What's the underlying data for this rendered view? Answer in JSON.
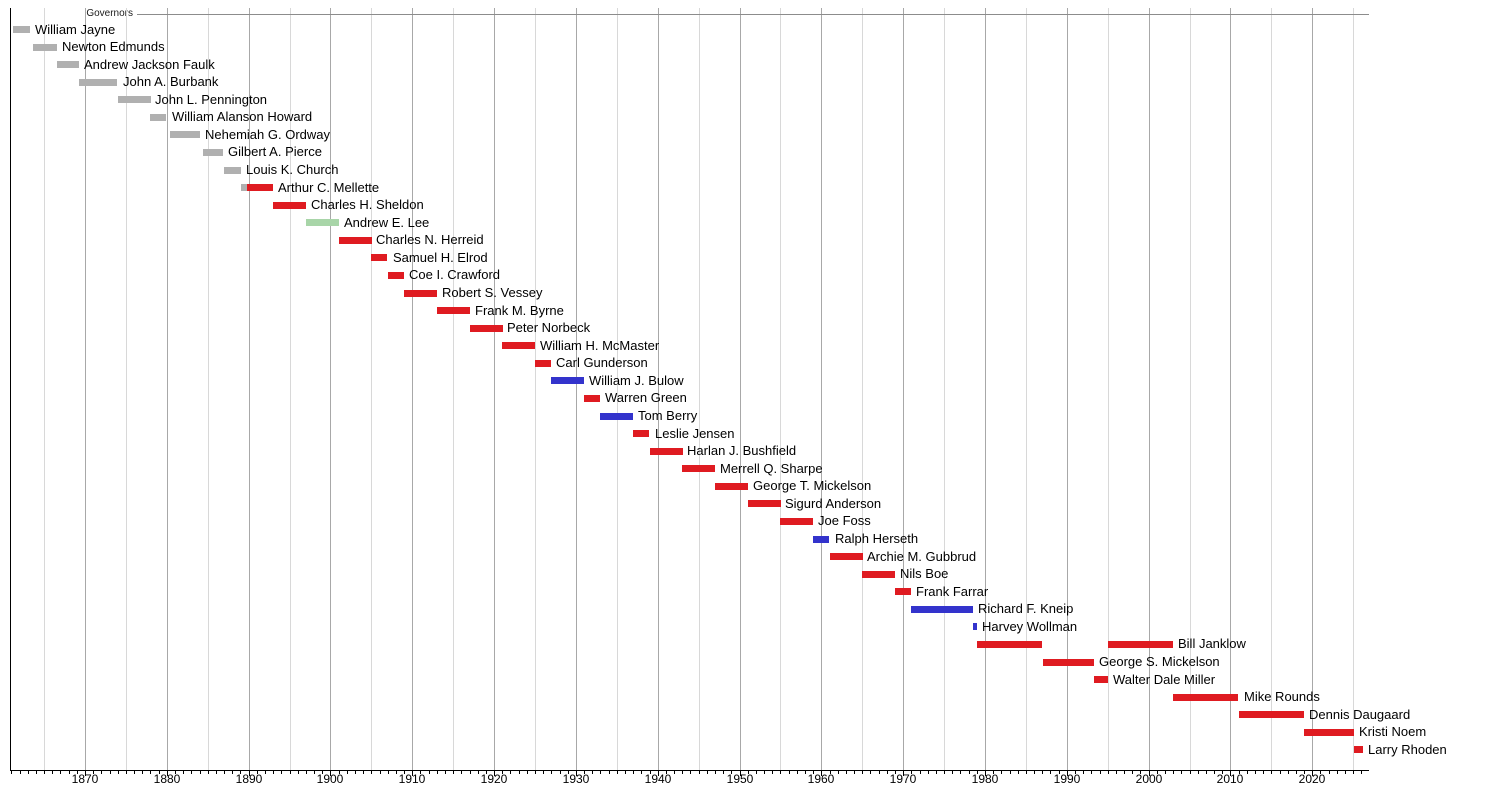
{
  "chart_data": {
    "type": "timeline",
    "title": "Governors",
    "subtitle": "",
    "legend": "none",
    "orientation": "horizontal bars, one row per governor, label right of bar",
    "x_axis": {
      "min_year": 1861,
      "max_year": 2027,
      "gridline_every_years": 5,
      "tick_every_years": 1,
      "label_every_years": 10,
      "decade_labels": [
        "1870",
        "1880",
        "1890",
        "1900",
        "1910",
        "1920",
        "1930",
        "1940",
        "1950",
        "1960",
        "1970",
        "1980",
        "1990",
        "2000",
        "2010",
        "2020"
      ]
    },
    "party_colors": {
      "Territorial": "#b0b0b0",
      "Republican": "#df1b21",
      "Democratic": "#3333cc",
      "Populist": "#a8d5a8"
    },
    "grid_colors": {
      "minor": "#d8d8d8",
      "major": "#a8a8a8",
      "axis": "#000000",
      "top_line": "#8c8c8c"
    },
    "governors": [
      {
        "name": "William Jayne",
        "party": "Territorial",
        "terms": [
          {
            "start": 1861.2,
            "end": 1863.3,
            "party": "Territorial"
          }
        ]
      },
      {
        "name": "Newton Edmunds",
        "party": "Territorial",
        "terms": [
          {
            "start": 1863.7,
            "end": 1866.6,
            "party": "Territorial"
          }
        ]
      },
      {
        "name": "Andrew Jackson Faulk",
        "party": "Territorial",
        "terms": [
          {
            "start": 1866.6,
            "end": 1869.3,
            "party": "Territorial"
          }
        ]
      },
      {
        "name": "John A. Burbank",
        "party": "Territorial",
        "terms": [
          {
            "start": 1869.3,
            "end": 1874.0,
            "party": "Territorial"
          }
        ]
      },
      {
        "name": "John L. Pennington",
        "party": "Territorial",
        "terms": [
          {
            "start": 1874.0,
            "end": 1878.0,
            "party": "Territorial"
          }
        ]
      },
      {
        "name": "William Alanson Howard",
        "party": "Territorial",
        "terms": [
          {
            "start": 1878.0,
            "end": 1880.0,
            "party": "Territorial"
          }
        ]
      },
      {
        "name": "Nehemiah G. Ordway",
        "party": "Territorial",
        "terms": [
          {
            "start": 1880.4,
            "end": 1884.1,
            "party": "Territorial"
          }
        ]
      },
      {
        "name": "Gilbert A. Pierce",
        "party": "Territorial",
        "terms": [
          {
            "start": 1884.4,
            "end": 1886.9,
            "party": "Territorial"
          }
        ]
      },
      {
        "name": "Louis K. Church",
        "party": "Territorial",
        "terms": [
          {
            "start": 1887.0,
            "end": 1889.05,
            "party": "Territorial"
          }
        ]
      },
      {
        "name": "Arthur C. Mellette",
        "party": "Republican",
        "terms": [
          {
            "start": 1889.05,
            "end": 1889.85,
            "party": "Territorial"
          },
          {
            "start": 1889.85,
            "end": 1893.0,
            "party": "Republican"
          }
        ]
      },
      {
        "name": "Charles H. Sheldon",
        "party": "Republican",
        "terms": [
          {
            "start": 1893.0,
            "end": 1897.0,
            "party": "Republican"
          }
        ]
      },
      {
        "name": "Andrew E. Lee",
        "party": "Populist",
        "terms": [
          {
            "start": 1897.0,
            "end": 1901.0,
            "party": "Populist"
          }
        ]
      },
      {
        "name": "Charles N. Herreid",
        "party": "Republican",
        "terms": [
          {
            "start": 1901.0,
            "end": 1905.0,
            "party": "Republican"
          }
        ]
      },
      {
        "name": "Samuel H. Elrod",
        "party": "Republican",
        "terms": [
          {
            "start": 1905.0,
            "end": 1907.0,
            "party": "Republican"
          }
        ]
      },
      {
        "name": "Coe I. Crawford",
        "party": "Republican",
        "terms": [
          {
            "start": 1907.0,
            "end": 1909.0,
            "party": "Republican"
          }
        ]
      },
      {
        "name": "Robert S. Vessey",
        "party": "Republican",
        "terms": [
          {
            "start": 1909.0,
            "end": 1913.0,
            "party": "Republican"
          }
        ]
      },
      {
        "name": "Frank M. Byrne",
        "party": "Republican",
        "terms": [
          {
            "start": 1913.0,
            "end": 1917.0,
            "party": "Republican"
          }
        ]
      },
      {
        "name": "Peter Norbeck",
        "party": "Republican",
        "terms": [
          {
            "start": 1917.0,
            "end": 1921.0,
            "party": "Republican"
          }
        ]
      },
      {
        "name": "William H. McMaster",
        "party": "Republican",
        "terms": [
          {
            "start": 1921.0,
            "end": 1925.0,
            "party": "Republican"
          }
        ]
      },
      {
        "name": "Carl Gunderson",
        "party": "Republican",
        "terms": [
          {
            "start": 1925.0,
            "end": 1927.0,
            "party": "Republican"
          }
        ]
      },
      {
        "name": "William J. Bulow",
        "party": "Democratic",
        "terms": [
          {
            "start": 1927.0,
            "end": 1931.0,
            "party": "Democratic"
          }
        ]
      },
      {
        "name": "Warren Green",
        "party": "Republican",
        "terms": [
          {
            "start": 1931.0,
            "end": 1933.0,
            "party": "Republican"
          }
        ]
      },
      {
        "name": "Tom Berry",
        "party": "Democratic",
        "terms": [
          {
            "start": 1933.0,
            "end": 1937.0,
            "party": "Democratic"
          }
        ]
      },
      {
        "name": "Leslie Jensen",
        "party": "Republican",
        "terms": [
          {
            "start": 1937.0,
            "end": 1939.0,
            "party": "Republican"
          }
        ]
      },
      {
        "name": "Harlan J. Bushfield",
        "party": "Republican",
        "terms": [
          {
            "start": 1939.0,
            "end": 1943.0,
            "party": "Republican"
          }
        ]
      },
      {
        "name": "Merrell Q. Sharpe",
        "party": "Republican",
        "terms": [
          {
            "start": 1943.0,
            "end": 1947.0,
            "party": "Republican"
          }
        ]
      },
      {
        "name": "George T. Mickelson",
        "party": "Republican",
        "terms": [
          {
            "start": 1947.0,
            "end": 1951.0,
            "party": "Republican"
          }
        ]
      },
      {
        "name": "Sigurd Anderson",
        "party": "Republican",
        "terms": [
          {
            "start": 1951.0,
            "end": 1955.0,
            "party": "Republican"
          }
        ]
      },
      {
        "name": "Joe Foss",
        "party": "Republican",
        "terms": [
          {
            "start": 1955.0,
            "end": 1959.0,
            "party": "Republican"
          }
        ]
      },
      {
        "name": "Ralph Herseth",
        "party": "Democratic",
        "terms": [
          {
            "start": 1959.0,
            "end": 1961.0,
            "party": "Democratic"
          }
        ]
      },
      {
        "name": "Archie M. Gubbrud",
        "party": "Republican",
        "terms": [
          {
            "start": 1961.0,
            "end": 1965.0,
            "party": "Republican"
          }
        ]
      },
      {
        "name": "Nils Boe",
        "party": "Republican",
        "terms": [
          {
            "start": 1965.0,
            "end": 1969.0,
            "party": "Republican"
          }
        ]
      },
      {
        "name": "Frank Farrar",
        "party": "Republican",
        "terms": [
          {
            "start": 1969.0,
            "end": 1971.0,
            "party": "Republican"
          }
        ]
      },
      {
        "name": "Richard F. Kneip",
        "party": "Democratic",
        "terms": [
          {
            "start": 1971.0,
            "end": 1978.55,
            "party": "Democratic"
          }
        ]
      },
      {
        "name": "Harvey Wollman",
        "party": "Democratic",
        "terms": [
          {
            "start": 1978.55,
            "end": 1979.0,
            "party": "Democratic"
          }
        ]
      },
      {
        "name": "Bill Janklow",
        "party": "Republican",
        "terms": [
          {
            "start": 1979.0,
            "end": 1987.0,
            "party": "Republican"
          },
          {
            "start": 1995.0,
            "end": 2003.0,
            "party": "Republican"
          }
        ]
      },
      {
        "name": "George S. Mickelson",
        "party": "Republican",
        "terms": [
          {
            "start": 1987.1,
            "end": 1993.3,
            "party": "Republican"
          }
        ]
      },
      {
        "name": "Walter Dale Miller",
        "party": "Republican",
        "terms": [
          {
            "start": 1993.3,
            "end": 1995.0,
            "party": "Republican"
          }
        ]
      },
      {
        "name": "Mike Rounds",
        "party": "Republican",
        "terms": [
          {
            "start": 2003.0,
            "end": 2011.0,
            "party": "Republican"
          }
        ]
      },
      {
        "name": "Dennis Daugaard",
        "party": "Republican",
        "terms": [
          {
            "start": 2011.0,
            "end": 2019.0,
            "party": "Republican"
          }
        ]
      },
      {
        "name": "Kristi Noem",
        "party": "Republican",
        "terms": [
          {
            "start": 2019.0,
            "end": 2025.1,
            "party": "Republican"
          }
        ]
      },
      {
        "name": "Larry Rhoden",
        "party": "Republican",
        "terms": [
          {
            "start": 2025.1,
            "end": 2026.2,
            "party": "Republican"
          }
        ]
      }
    ]
  }
}
